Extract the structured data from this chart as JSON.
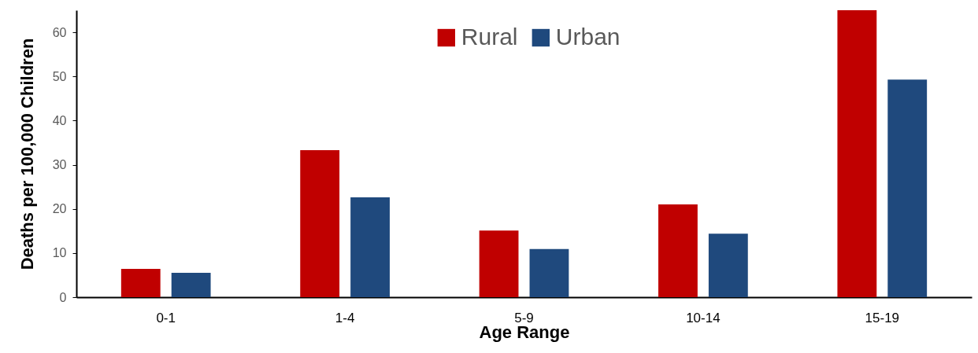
{
  "chart_data": {
    "type": "bar",
    "xlabel": "Age Range",
    "ylabel": "Deaths per 100,000 Children",
    "categories": [
      "0-1",
      "1-4",
      "5-9",
      "10-14",
      "15-19"
    ],
    "series": [
      {
        "name": "Rural",
        "color": "#c00000",
        "values": [
          6.4,
          33.3,
          15.1,
          21.0,
          65
        ]
      },
      {
        "name": "Urban",
        "color": "#1f497d",
        "values": [
          5.5,
          22.6,
          10.9,
          14.4,
          49.3
        ]
      }
    ],
    "ylim": [
      0,
      65
    ],
    "yticks": [
      0,
      10,
      20,
      30,
      40,
      50,
      60
    ],
    "grid": false,
    "legend": "top"
  }
}
